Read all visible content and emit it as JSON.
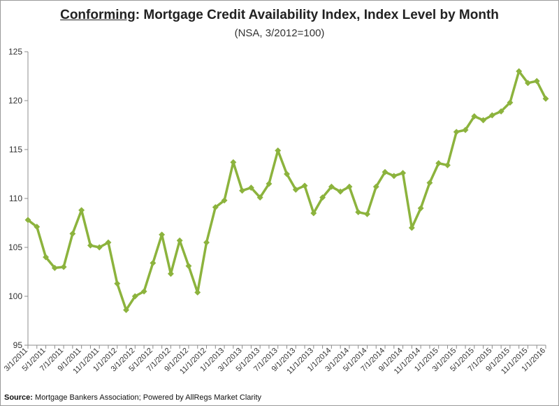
{
  "title_emph": "Conforming",
  "title_rest": ": Mortgage Credit Availability Index, Index Level by Month",
  "subtitle": "(NSA, 3/2012=100)",
  "source_label": "Source:",
  "source_text": " Mortgage Bankers Association; Powered by AllRegs Market Clarity",
  "colors": {
    "line": "#8cb33d",
    "marker": "#8cb33d",
    "axis": "#8c8c8c",
    "border": "#9a9a9a"
  },
  "chart_data": {
    "type": "line",
    "title": "Conforming: Mortgage Credit Availability Index, Index Level by Month",
    "subtitle": "(NSA, 3/2012=100)",
    "ylim": [
      95,
      125
    ],
    "yticks": [
      95,
      100,
      105,
      110,
      115,
      120,
      125
    ],
    "grid": false,
    "xtick_labels": [
      "3/1/2011",
      "5/1/2011",
      "7/1/2011",
      "9/1/2011",
      "11/1/2011",
      "1/1/2012",
      "3/1/2012",
      "5/1/2012",
      "7/1/2012",
      "9/1/2012",
      "11/1/2012",
      "1/1/2013",
      "3/1/2013",
      "5/1/2013",
      "7/1/2013",
      "9/1/2013",
      "11/1/2013",
      "1/1/2014",
      "3/1/2014",
      "5/1/2014",
      "7/1/2014",
      "9/1/2014",
      "11/1/2014",
      "1/1/2015",
      "3/1/2015",
      "5/1/2015",
      "7/1/2015",
      "9/1/2015",
      "11/1/2015",
      "1/1/2016"
    ],
    "x": [
      "3/1/2011",
      "4/1/2011",
      "5/1/2011",
      "6/1/2011",
      "7/1/2011",
      "8/1/2011",
      "9/1/2011",
      "10/1/2011",
      "11/1/2011",
      "12/1/2011",
      "1/1/2012",
      "2/1/2012",
      "3/1/2012",
      "4/1/2012",
      "5/1/2012",
      "6/1/2012",
      "7/1/2012",
      "8/1/2012",
      "9/1/2012",
      "10/1/2012",
      "11/1/2012",
      "12/1/2012",
      "1/1/2013",
      "2/1/2013",
      "3/1/2013",
      "4/1/2013",
      "5/1/2013",
      "6/1/2013",
      "7/1/2013",
      "8/1/2013",
      "9/1/2013",
      "10/1/2013",
      "11/1/2013",
      "12/1/2013",
      "1/1/2014",
      "2/1/2014",
      "3/1/2014",
      "4/1/2014",
      "5/1/2014",
      "6/1/2014",
      "7/1/2014",
      "8/1/2014",
      "9/1/2014",
      "10/1/2014",
      "11/1/2014",
      "12/1/2014",
      "1/1/2015",
      "2/1/2015",
      "3/1/2015",
      "4/1/2015",
      "5/1/2015",
      "6/1/2015",
      "7/1/2015",
      "8/1/2015",
      "9/1/2015",
      "10/1/2015",
      "11/1/2015",
      "12/1/2015",
      "1/1/2016"
    ],
    "series": [
      {
        "values": [
          107.8,
          107.1,
          104.0,
          102.9,
          103.0,
          106.4,
          108.8,
          105.2,
          105.0,
          105.5,
          101.3,
          98.6,
          100.0,
          100.5,
          103.4,
          106.3,
          102.3,
          105.7,
          103.1,
          100.4,
          105.5,
          109.1,
          109.8,
          113.7,
          110.8,
          111.1,
          110.1,
          111.5,
          114.9,
          112.5,
          110.9,
          111.3,
          108.5,
          110.1,
          111.2,
          110.7,
          111.2,
          108.6,
          108.4,
          111.2,
          112.7,
          112.3,
          112.6,
          107.0,
          109.0,
          111.6,
          113.6,
          113.4,
          116.8,
          117.0,
          118.4,
          118.0,
          118.5,
          118.9,
          119.8,
          123.0,
          121.8,
          122.0,
          120.2
        ]
      }
    ]
  }
}
